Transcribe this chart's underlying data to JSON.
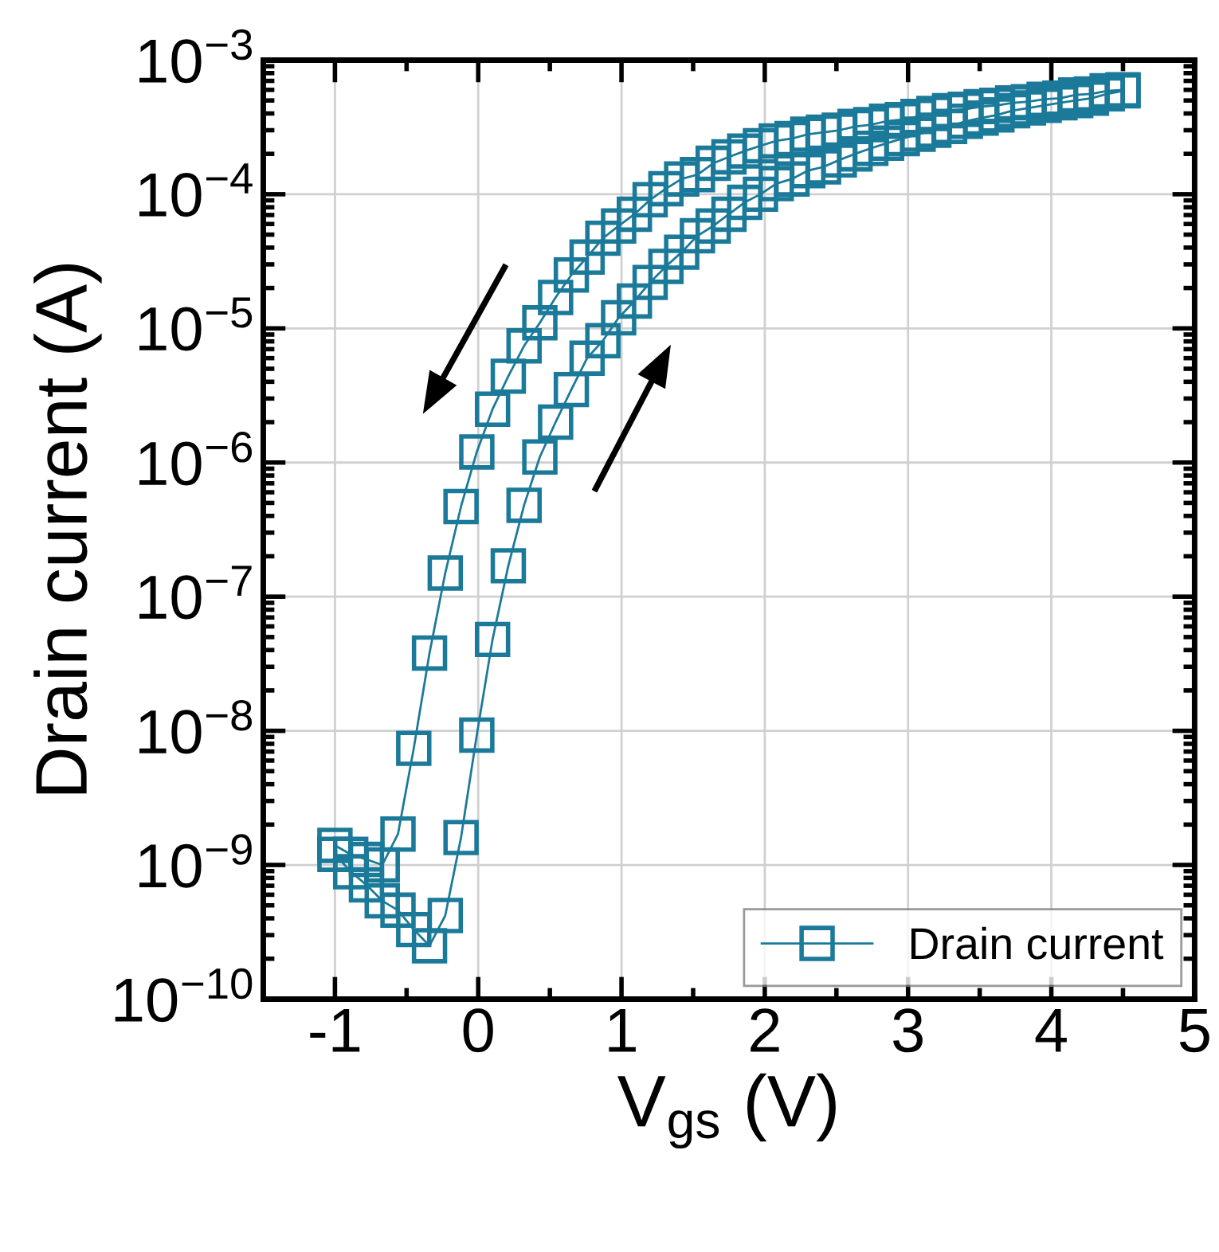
{
  "chart_data": {
    "type": "line",
    "xlabel": "V$_{gs}$ (V)",
    "ylabel": "Drain current (A)",
    "log": "y",
    "grid": true,
    "legend": "bottom right",
    "marker": "square",
    "line_style": "solid",
    "xlim": [
      -1.5,
      5
    ],
    "xticks": [
      -1,
      0,
      1,
      2,
      3,
      4,
      5
    ],
    "ylim": [
      1e-10,
      0.001
    ],
    "yticks": [
      {
        "value": 1e-10,
        "label": "10$^{−10}$"
      },
      {
        "value": 1e-09,
        "label": "10$^{−9}$"
      },
      {
        "value": 1e-08,
        "label": "10$^{−8}$"
      },
      {
        "value": 1e-07,
        "label": "10$^{−7}$"
      },
      {
        "value": 1e-06,
        "label": "10$^{−6}$"
      },
      {
        "value": 1e-05,
        "label": "10$^{−5}$"
      },
      {
        "value": 0.0001,
        "label": "10$^{−4}$"
      },
      {
        "value": 0.001,
        "label": "10$^{−3}$"
      }
    ],
    "series": [
      {
        "name": "Drain current",
        "color": "#1b7a99",
        "x": [
          -1.0,
          -0.89,
          -0.78,
          -0.67,
          -0.56,
          -0.45,
          -0.34,
          -0.23,
          -0.12,
          -0.01,
          0.1,
          0.21,
          0.32,
          0.43,
          0.54,
          0.65,
          0.76,
          0.87,
          0.98,
          1.09,
          1.2,
          1.31,
          1.42,
          1.53,
          1.64,
          1.75,
          1.86,
          1.97,
          2.08,
          2.19,
          2.3,
          2.41,
          2.52,
          2.63,
          2.74,
          2.85,
          2.96,
          3.07,
          3.18,
          3.29,
          3.4,
          3.51,
          3.62,
          3.73,
          3.84,
          3.95,
          4.06,
          4.17,
          4.28,
          4.39,
          4.5,
          4.5,
          4.39,
          4.28,
          4.17,
          4.06,
          3.95,
          3.84,
          3.73,
          3.62,
          3.51,
          3.4,
          3.29,
          3.18,
          3.07,
          2.96,
          2.85,
          2.74,
          2.63,
          2.52,
          2.41,
          2.3,
          2.19,
          2.08,
          1.97,
          1.86,
          1.75,
          1.64,
          1.53,
          1.42,
          1.31,
          1.2,
          1.09,
          0.98,
          0.87,
          0.76,
          0.65,
          0.54,
          0.43,
          0.32,
          0.21,
          0.1,
          -0.01,
          -0.12,
          -0.23,
          -0.34,
          -0.45,
          -0.56,
          -0.67,
          -0.78,
          -0.89,
          -1.0
        ],
        "values": [
          1.2e-09,
          8.9e-10,
          7.1e-10,
          5.4e-10,
          4.6e-10,
          3.3e-10,
          2.5e-10,
          4.2e-10,
          1.6e-09,
          9.3e-09,
          4.8e-08,
          1.7e-07,
          4.8e-07,
          1.1e-06,
          2e-06,
          3.5e-06,
          6e-06,
          8.1e-06,
          1.2e-05,
          1.6e-05,
          2.2e-05,
          2.9e-05,
          3.7e-05,
          4.9e-05,
          5.8e-05,
          7.1e-05,
          8.7e-05,
          0.0001,
          0.00012,
          0.00013,
          0.00015,
          0.00016,
          0.00018,
          0.0002,
          0.00022,
          0.00024,
          0.00026,
          0.00028,
          0.0003,
          0.00032,
          0.00035,
          0.00037,
          0.00039,
          0.00042,
          0.00044,
          0.00046,
          0.00048,
          0.0005,
          0.00052,
          0.00056,
          0.00059,
          0.0006,
          0.00059,
          0.00056,
          0.00055,
          0.00052,
          0.00051,
          0.00049,
          0.00048,
          0.00046,
          0.00045,
          0.00043,
          0.00042,
          0.0004,
          0.00038,
          0.00036,
          0.00035,
          0.00033,
          0.00032,
          0.0003,
          0.00029,
          0.00028,
          0.00026,
          0.00025,
          0.00023,
          0.00021,
          0.00019,
          0.00017,
          0.00014,
          0.00013,
          0.00011,
          9.1e-05,
          7.1e-05,
          5.8e-05,
          4.7e-05,
          3.4e-05,
          2.5e-05,
          1.7e-05,
          1.1e-05,
          7.4e-06,
          4.4e-06,
          2.5e-06,
          1.2e-06,
          4.7e-07,
          1.5e-07,
          3.8e-08,
          7.4e-09,
          1.7e-09,
          1e-09,
          1.1e-09,
          1.2e-09,
          1.4e-09
        ]
      }
    ]
  }
}
